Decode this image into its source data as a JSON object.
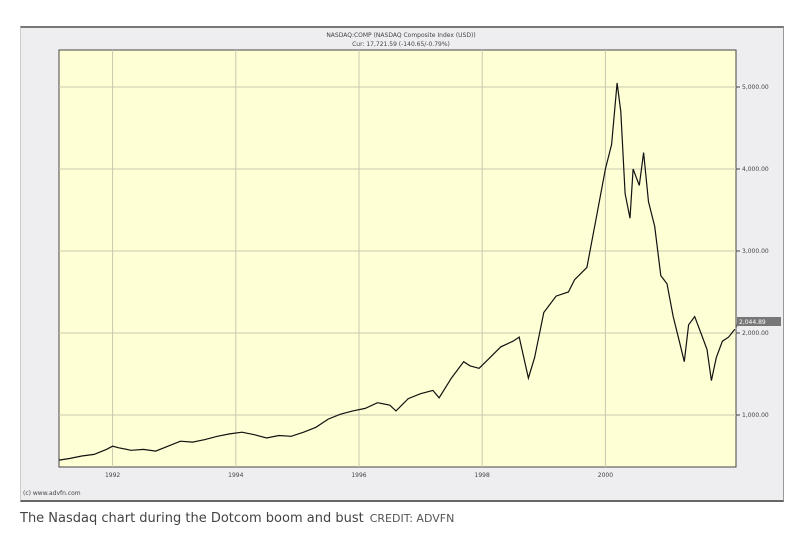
{
  "chart_data": {
    "type": "line",
    "title": "NASDAQ:COMP (NASDAQ Composite Index (USD))",
    "subtitle": "Cur: 17,721.59 (-140.65/-0.79%)",
    "xlabel": "",
    "ylabel": "",
    "xlim": [
      1991.13,
      2002.12
    ],
    "ylim": [
      0,
      5500
    ],
    "x_ticks": [
      {
        "v": 1992,
        "label": "1992"
      },
      {
        "v": 1994,
        "label": "1994"
      },
      {
        "v": 1996,
        "label": "1996"
      },
      {
        "v": 1998,
        "label": "1998"
      },
      {
        "v": 2000,
        "label": "2000"
      }
    ],
    "y_ticks": [
      {
        "v": 1000,
        "label": "1,000.00"
      },
      {
        "v": 2000,
        "label": "2,000.00"
      },
      {
        "v": 3000,
        "label": "3,000.00"
      },
      {
        "v": 4000,
        "label": "4,000.00"
      },
      {
        "v": 5000,
        "label": "5,000.00"
      }
    ],
    "last_value": {
      "v": 2044.89,
      "label": "2,044.89"
    },
    "grid": true,
    "series": [
      {
        "name": "NASDAQ Composite",
        "color": "#111111",
        "x": [
          1991.13,
          1991.3,
          1991.5,
          1991.7,
          1991.9,
          1992.0,
          1992.1,
          1992.3,
          1992.5,
          1992.7,
          1992.9,
          1993.1,
          1993.3,
          1993.5,
          1993.7,
          1993.9,
          1994.1,
          1994.3,
          1994.5,
          1994.7,
          1994.9,
          1995.1,
          1995.3,
          1995.5,
          1995.7,
          1995.9,
          1996.1,
          1996.3,
          1996.5,
          1996.6,
          1996.8,
          1997.0,
          1997.2,
          1997.3,
          1997.5,
          1997.7,
          1997.8,
          1997.95,
          1998.1,
          1998.3,
          1998.5,
          1998.6,
          1998.75,
          1998.85,
          1999.0,
          1999.2,
          1999.4,
          1999.5,
          1999.7,
          1999.85,
          2000.0,
          2000.1,
          2000.19,
          2000.25,
          2000.32,
          2000.4,
          2000.45,
          2000.55,
          2000.62,
          2000.7,
          2000.8,
          2000.9,
          2001.0,
          2001.1,
          2001.2,
          2001.28,
          2001.35,
          2001.45,
          2001.55,
          2001.65,
          2001.72,
          2001.8,
          2001.9,
          2002.0,
          2002.1
        ],
        "y": [
          450,
          470,
          500,
          520,
          580,
          620,
          600,
          570,
          580,
          560,
          620,
          680,
          670,
          700,
          740,
          770,
          790,
          760,
          720,
          750,
          740,
          790,
          850,
          950,
          1010,
          1050,
          1080,
          1150,
          1120,
          1050,
          1200,
          1260,
          1300,
          1210,
          1450,
          1650,
          1600,
          1570,
          1680,
          1830,
          1900,
          1950,
          1450,
          1700,
          2250,
          2450,
          2500,
          2650,
          2800,
          3400,
          4000,
          4300,
          5050,
          4700,
          3700,
          3400,
          4000,
          3800,
          4200,
          3600,
          3300,
          2700,
          2600,
          2200,
          1900,
          1650,
          2100,
          2200,
          2000,
          1800,
          1420,
          1700,
          1900,
          1950,
          2045
        ]
      }
    ]
  },
  "footer": {
    "source": "(c) www.advfn.com"
  },
  "caption": {
    "text": "The Nasdaq chart during the Dotcom boom and bust",
    "credit": "CREDIT: ADVFN"
  }
}
